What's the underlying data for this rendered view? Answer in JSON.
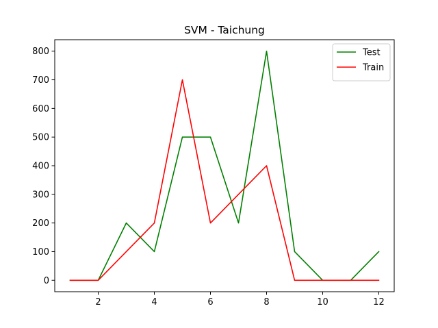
{
  "chart_data": {
    "type": "line",
    "title": "SVM - Taichung",
    "xlabel": "",
    "ylabel": "",
    "x": [
      1,
      2,
      3,
      4,
      5,
      6,
      7,
      8,
      9,
      10,
      11,
      12
    ],
    "xlim": [
      0.45,
      12.55
    ],
    "ylim": [
      -40,
      840
    ],
    "xticks": [
      2,
      4,
      6,
      8,
      10,
      12
    ],
    "yticks": [
      0,
      100,
      200,
      300,
      400,
      500,
      600,
      700,
      800
    ],
    "grid": false,
    "legend_position": "top-right",
    "series": [
      {
        "name": "Test",
        "color": "#008000",
        "values": [
          0,
          0,
          200,
          100,
          500,
          500,
          200,
          800,
          100,
          0,
          0,
          100
        ]
      },
      {
        "name": "Train",
        "color": "#ff0000",
        "values": [
          0,
          0,
          100,
          200,
          700,
          200,
          300,
          400,
          0,
          0,
          0,
          0
        ]
      }
    ]
  }
}
